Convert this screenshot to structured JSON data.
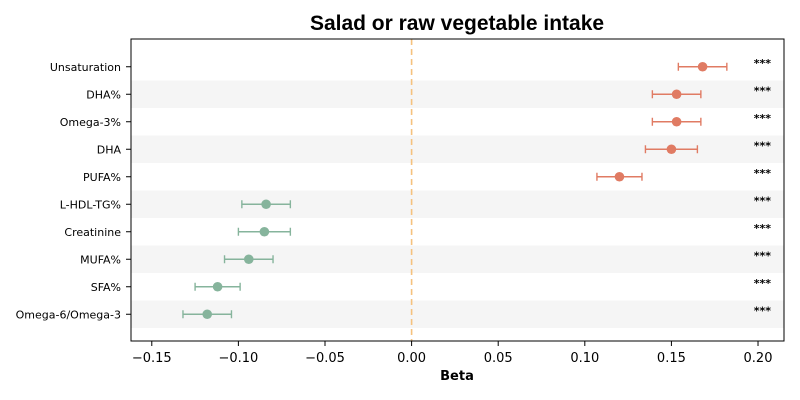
{
  "chart_data": {
    "type": "scatter",
    "subtype": "forest-plot",
    "title": "Salad  or  raw vegetable intake",
    "xlabel": "Beta",
    "ylabel": "",
    "xlim": [
      -0.162,
      0.215
    ],
    "xticks": [
      -0.15,
      -0.1,
      -0.05,
      0.0,
      0.05,
      0.1,
      0.15,
      0.2
    ],
    "xtick_labels": [
      "−0.15",
      "−0.10",
      "−0.05",
      "0.00",
      "0.05",
      "0.10",
      "0.15",
      "0.20"
    ],
    "reference_line": 0.0,
    "grid": false,
    "alternating_row_shading": true,
    "colors": {
      "positive": "#e07b63",
      "negative": "#86b49c",
      "reference_line": "#f5c27e",
      "row_shade": "#f5f5f5"
    },
    "categories": [
      "Unsaturation",
      "DHA%",
      "Omega-3%",
      "DHA",
      "PUFA%",
      "L-HDL-TG%",
      "Creatinine",
      "MUFA%",
      "SFA%",
      "Omega-6/Omega-3"
    ],
    "beta": [
      0.168,
      0.153,
      0.153,
      0.15,
      0.12,
      -0.084,
      -0.085,
      -0.094,
      -0.112,
      -0.118
    ],
    "ci_lower": [
      0.154,
      0.139,
      0.139,
      0.135,
      0.107,
      -0.098,
      -0.1,
      -0.108,
      -0.125,
      -0.132
    ],
    "ci_upper": [
      0.182,
      0.167,
      0.167,
      0.165,
      0.133,
      -0.07,
      -0.07,
      -0.08,
      -0.099,
      -0.104
    ],
    "significance": [
      "***",
      "***",
      "***",
      "***",
      "***",
      "***",
      "***",
      "***",
      "***",
      "***"
    ]
  }
}
